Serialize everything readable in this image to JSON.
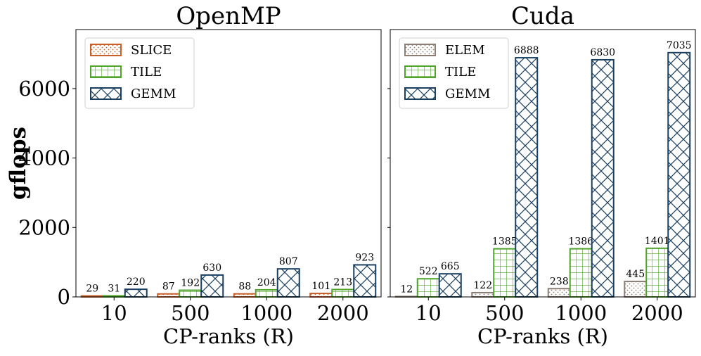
{
  "y_axis_label": "gflops",
  "chart_data": [
    {
      "type": "bar",
      "title": "OpenMP",
      "xlabel": "CP-ranks (R)",
      "ylabel": "gflops",
      "ylim": [
        0,
        7700
      ],
      "yticks": [
        0,
        2000,
        4000,
        6000
      ],
      "categories": [
        "10",
        "500",
        "1000",
        "2000"
      ],
      "series": [
        {
          "name": "SLICE",
          "values": [
            29,
            87,
            88,
            101
          ],
          "color": "#c8602a",
          "pattern": "dots"
        },
        {
          "name": "TILE",
          "values": [
            31,
            192,
            204,
            213
          ],
          "color": "#4fa52a",
          "pattern": "grid"
        },
        {
          "name": "GEMM",
          "values": [
            220,
            630,
            807,
            923
          ],
          "color": "#1a3f60",
          "pattern": "cross"
        }
      ],
      "legend": "top-left"
    },
    {
      "type": "bar",
      "title": "Cuda",
      "xlabel": "CP-ranks (R)",
      "ylabel": "",
      "ylim": [
        0,
        7700
      ],
      "yticks": [
        0,
        2000,
        4000,
        6000
      ],
      "categories": [
        "10",
        "500",
        "1000",
        "2000"
      ],
      "series": [
        {
          "name": "ELEM",
          "values": [
            12,
            122,
            238,
            445
          ],
          "color": "#8c7e74",
          "pattern": "dots"
        },
        {
          "name": "TILE",
          "values": [
            522,
            1385,
            1386,
            1401
          ],
          "color": "#4fa52a",
          "pattern": "grid"
        },
        {
          "name": "GEMM",
          "values": [
            665,
            6888,
            6830,
            7035
          ],
          "color": "#1a3f60",
          "pattern": "cross"
        }
      ],
      "legend": "top-left"
    }
  ]
}
